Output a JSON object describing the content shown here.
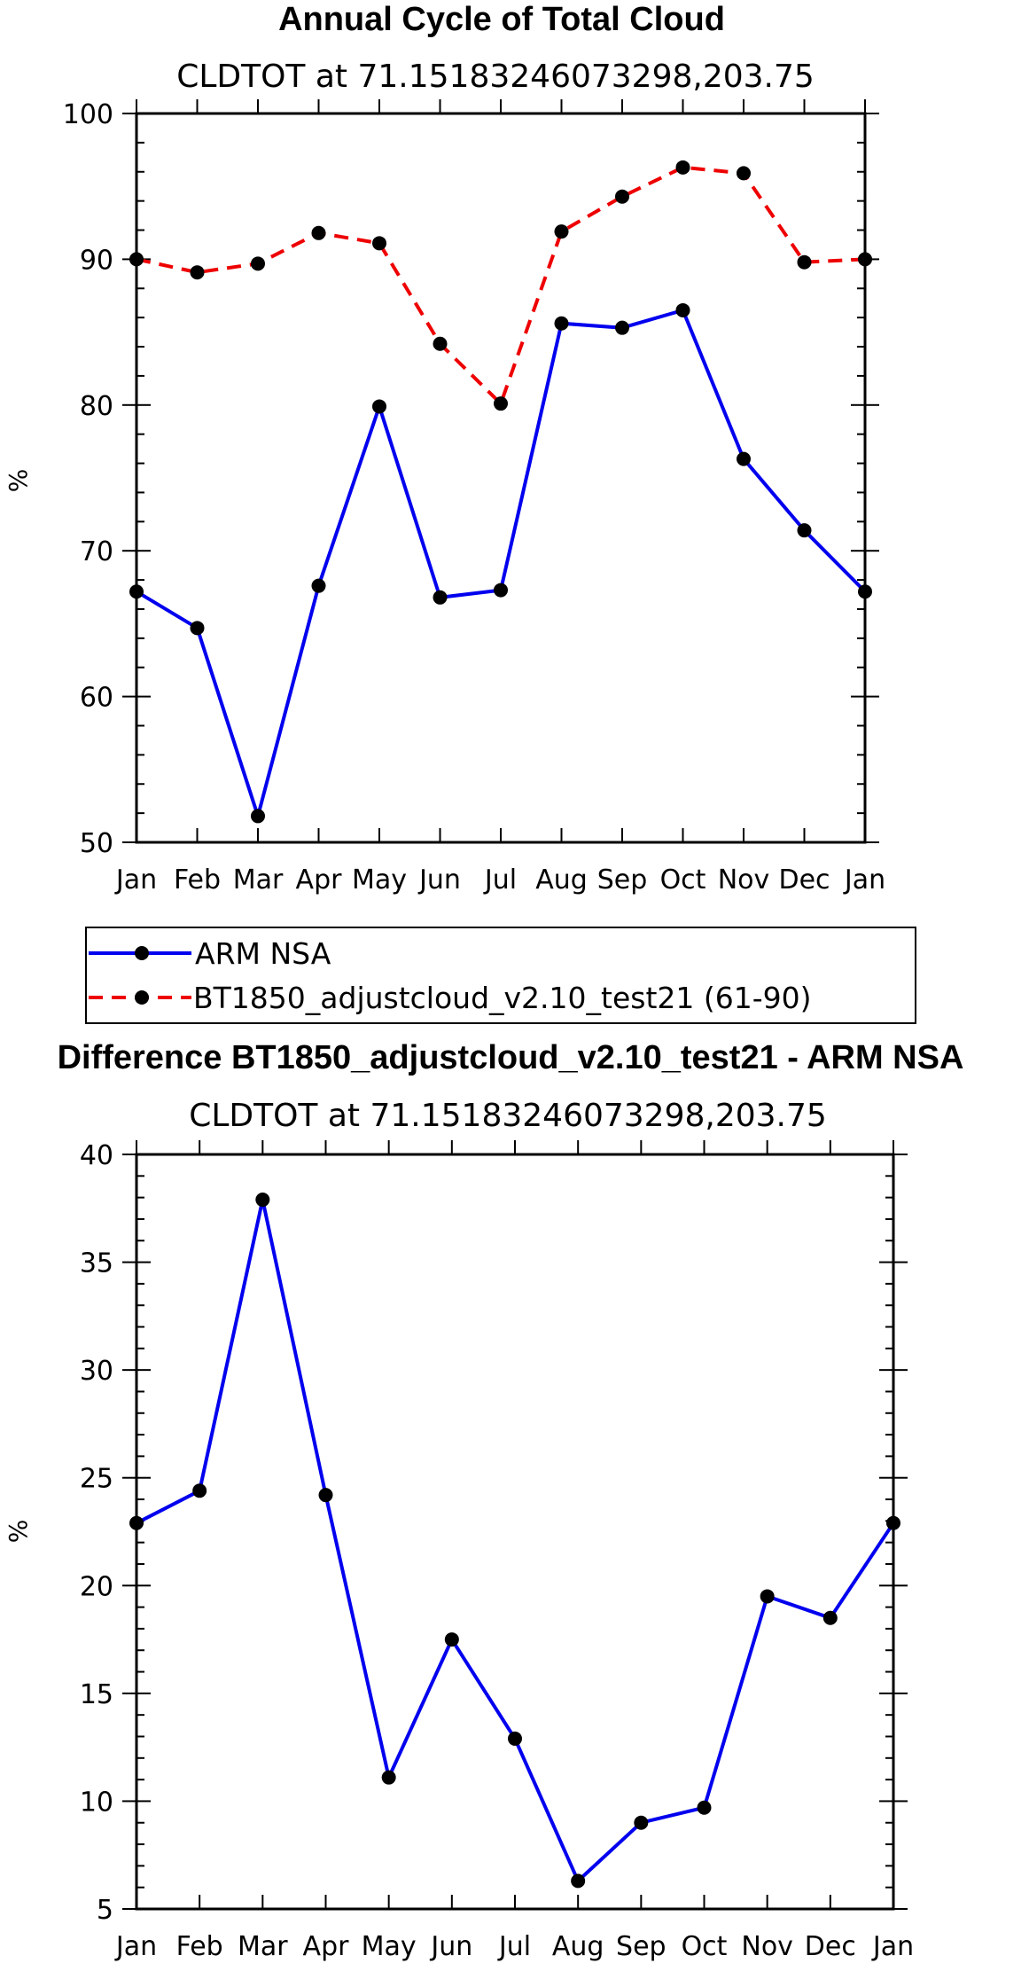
{
  "chart_data": [
    {
      "type": "line",
      "title": "Annual Cycle of Total Cloud",
      "subtitle": "CLDTOT at 71.15183246073298,203.75",
      "ylabel": "%",
      "ylim": [
        50,
        100
      ],
      "yticks": [
        50,
        60,
        70,
        80,
        90,
        100
      ],
      "categories": [
        "Jan",
        "Feb",
        "Mar",
        "Apr",
        "May",
        "Jun",
        "Jul",
        "Aug",
        "Sep",
        "Oct",
        "Nov",
        "Dec",
        "Jan"
      ],
      "series": [
        {
          "name": "ARM NSA",
          "color": "#0000ee",
          "dash": "solid",
          "values": [
            67.2,
            64.7,
            51.8,
            67.6,
            79.9,
            66.8,
            67.3,
            85.6,
            85.3,
            86.5,
            76.3,
            71.4,
            67.2
          ]
        },
        {
          "name": "BT1850_adjustcloud_v2.10_test21 (61-90)",
          "color": "#ee0000",
          "dash": "dashed",
          "values": [
            90.0,
            89.1,
            89.7,
            91.8,
            91.1,
            84.2,
            80.1,
            91.9,
            94.3,
            96.3,
            95.9,
            89.8,
            90.0
          ]
        }
      ],
      "legend": "below"
    },
    {
      "type": "line",
      "title": "Difference BT1850_adjustcloud_v2.10_test21 - ARM NSA",
      "subtitle": "CLDTOT at 71.15183246073298,203.75",
      "ylabel": "%",
      "ylim": [
        5,
        40
      ],
      "yticks": [
        5,
        10,
        15,
        20,
        25,
        30,
        35,
        40
      ],
      "categories": [
        "Jan",
        "Feb",
        "Mar",
        "Apr",
        "May",
        "Jun",
        "Jul",
        "Aug",
        "Sep",
        "Oct",
        "Nov",
        "Dec",
        "Jan"
      ],
      "series": [
        {
          "color": "#0000ee",
          "dash": "solid",
          "values": [
            22.9,
            24.4,
            37.9,
            24.2,
            11.1,
            17.5,
            12.9,
            6.3,
            9.0,
            9.7,
            19.5,
            18.5,
            22.9
          ]
        }
      ]
    }
  ]
}
